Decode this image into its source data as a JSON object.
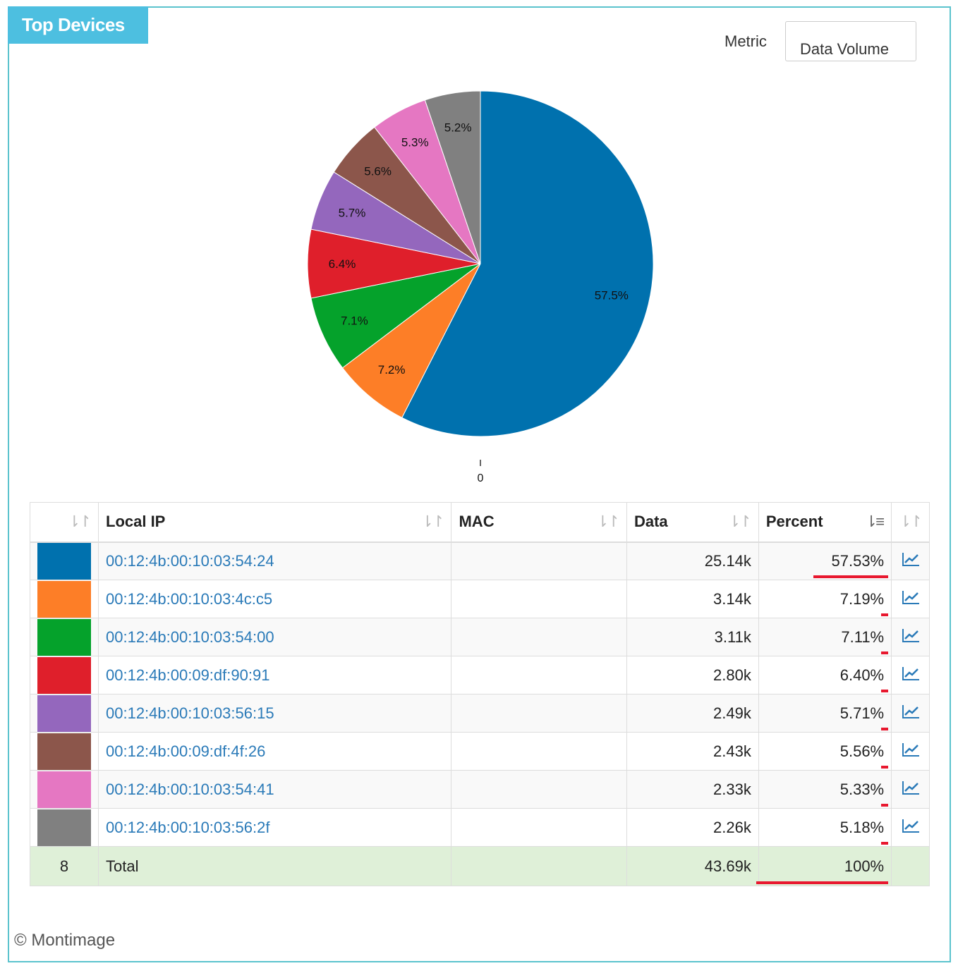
{
  "panel": {
    "title": "Top Devices"
  },
  "metric": {
    "label": "Metric",
    "value": "Data Volume"
  },
  "chart_data": {
    "type": "pie",
    "title": "Top Devices",
    "categories": [
      "00:12:4b:00:10:03:54:24",
      "00:12:4b:00:10:03:4c:c5",
      "00:12:4b:00:10:03:54:00",
      "00:12:4b:00:09:df:90:91",
      "00:12:4b:00:10:03:56:15",
      "00:12:4b:00:09:df:4f:26",
      "00:12:4b:00:10:03:54:41",
      "00:12:4b:00:10:03:56:2f"
    ],
    "values": [
      57.5,
      7.2,
      7.1,
      6.4,
      5.7,
      5.6,
      5.3,
      5.2
    ],
    "labels": [
      "57.5%",
      "7.2%",
      "7.1%",
      "6.4%",
      "5.7%",
      "5.6%",
      "5.3%",
      "5.2%"
    ],
    "colors": [
      "#0071ae",
      "#fd7e27",
      "#05a22b",
      "#df1f2b",
      "#9467bd",
      "#8c564b",
      "#e577c2",
      "#808080"
    ],
    "axis_tick_label": "0"
  },
  "table": {
    "headers": {
      "index": "",
      "local_ip": "Local IP",
      "mac": "MAC",
      "data": "Data",
      "percent": "Percent",
      "action": ""
    },
    "sort_icon": "⇂↾",
    "sort_icon_active": "⇂≡",
    "rows": [
      {
        "color": "#0071ae",
        "ip": "00:12:4b:00:10:03:54:24",
        "mac": "",
        "data": "25.14k",
        "percent": "57.53%",
        "percent_value": 57.53
      },
      {
        "color": "#fd7e27",
        "ip": "00:12:4b:00:10:03:4c:c5",
        "mac": "",
        "data": "3.14k",
        "percent": "7.19%",
        "percent_value": 7.19
      },
      {
        "color": "#05a22b",
        "ip": "00:12:4b:00:10:03:54:00",
        "mac": "",
        "data": "3.11k",
        "percent": "7.11%",
        "percent_value": 7.11
      },
      {
        "color": "#df1f2b",
        "ip": "00:12:4b:00:09:df:90:91",
        "mac": "",
        "data": "2.80k",
        "percent": "6.40%",
        "percent_value": 6.4
      },
      {
        "color": "#9467bd",
        "ip": "00:12:4b:00:10:03:56:15",
        "mac": "",
        "data": "2.49k",
        "percent": "5.71%",
        "percent_value": 5.71
      },
      {
        "color": "#8c564b",
        "ip": "00:12:4b:00:09:df:4f:26",
        "mac": "",
        "data": "2.43k",
        "percent": "5.56%",
        "percent_value": 5.56
      },
      {
        "color": "#e577c2",
        "ip": "00:12:4b:00:10:03:54:41",
        "mac": "",
        "data": "2.33k",
        "percent": "5.33%",
        "percent_value": 5.33
      },
      {
        "color": "#808080",
        "ip": "00:12:4b:00:10:03:56:2f",
        "mac": "",
        "data": "2.26k",
        "percent": "5.18%",
        "percent_value": 5.18
      }
    ],
    "total": {
      "count": "8",
      "label": "Total",
      "data": "43.69k",
      "percent": "100%",
      "percent_value": 100
    }
  },
  "footer": {
    "copyright": "© Montimage"
  },
  "icons": {
    "chart_icon": "line-chart-icon",
    "sort_icon": "sort-icon"
  }
}
